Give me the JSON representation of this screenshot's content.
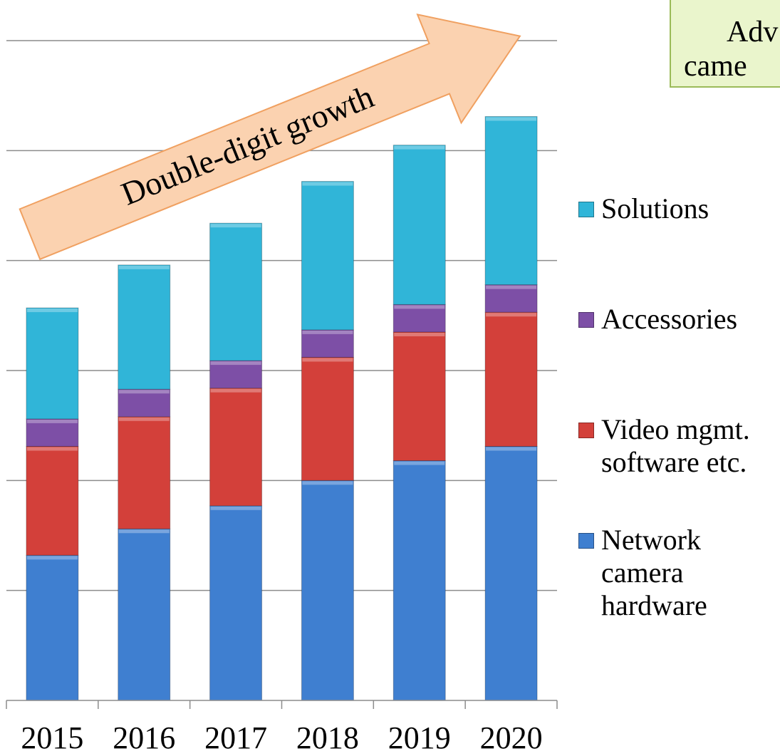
{
  "chart_data": {
    "type": "stacked_bar",
    "categories": [
      "2015",
      "2016",
      "2017",
      "2018",
      "2019",
      "2020"
    ],
    "series": [
      {
        "name": "Network camera hardware",
        "color": "#3f7fd0",
        "values": [
          1.32,
          1.56,
          1.77,
          2.0,
          2.18,
          2.31
        ]
      },
      {
        "name": "Video mgmt. software etc.",
        "color": "#d3403a",
        "values": [
          0.99,
          1.02,
          1.07,
          1.12,
          1.17,
          1.22
        ]
      },
      {
        "name": "Accessories",
        "color": "#7d4fa6",
        "values": [
          0.25,
          0.25,
          0.25,
          0.25,
          0.25,
          0.25
        ]
      },
      {
        "name": "Solutions",
        "color": "#30b5d8",
        "values": [
          1.01,
          1.13,
          1.25,
          1.35,
          1.45,
          1.53
        ]
      }
    ],
    "ylim": [
      0,
      6
    ],
    "yticks": [
      0,
      1,
      2,
      3,
      4,
      5,
      6
    ],
    "grid": true,
    "annotation": "Double-digit growth",
    "callout": [
      "Adv",
      "came"
    ]
  }
}
